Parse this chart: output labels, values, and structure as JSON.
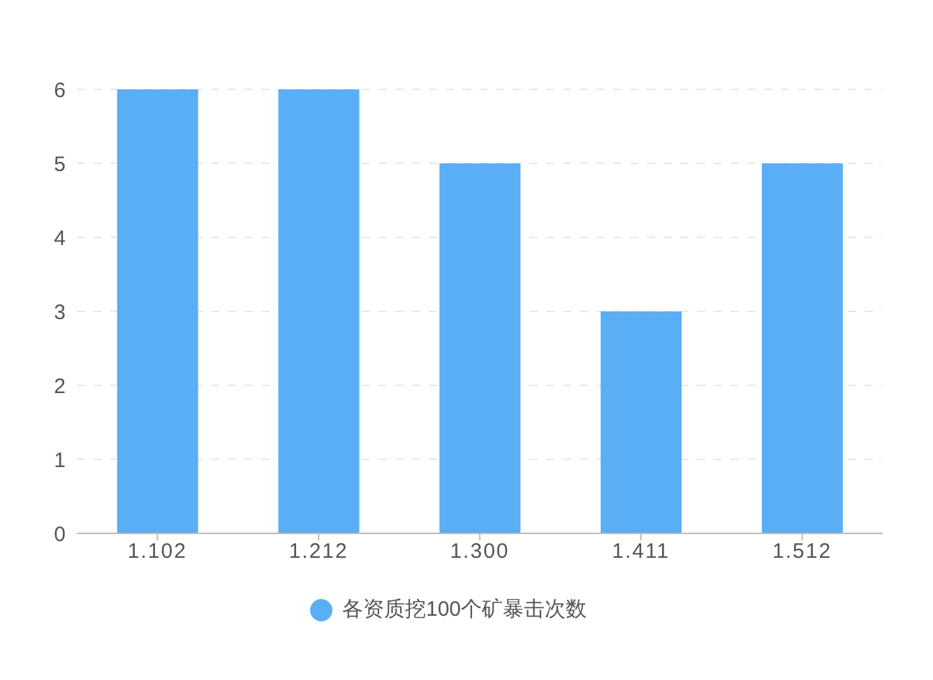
{
  "chart_data": {
    "type": "bar",
    "categories": [
      "1.102",
      "1.212",
      "1.300",
      "1.411",
      "1.512"
    ],
    "series": [
      {
        "name": "各资质挖100个矿暴击次数",
        "color": "#5aaef5",
        "values": [
          6,
          6,
          5,
          3,
          5
        ]
      }
    ],
    "ylim": [
      0,
      6
    ],
    "yticks": [
      0,
      1,
      2,
      3,
      4,
      5,
      6
    ],
    "grid": "y",
    "legend": "bottom"
  }
}
